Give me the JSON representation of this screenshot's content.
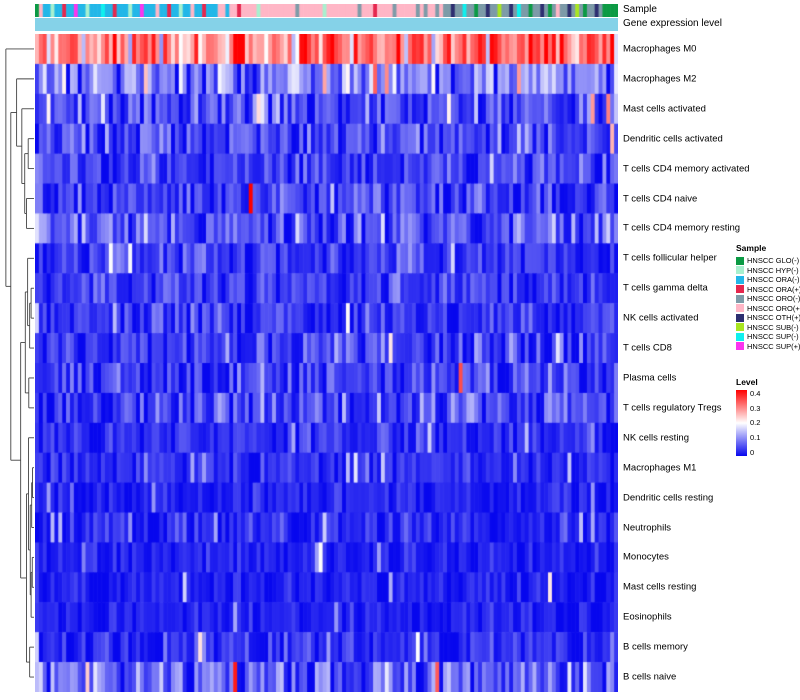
{
  "annotations": {
    "sample_label": "Sample",
    "expression_label": "Gene expression level",
    "expression_color": "#85D2E8",
    "column_samples": [
      0,
      5,
      2,
      2,
      1,
      2,
      2,
      3,
      2,
      2,
      9,
      2,
      2,
      1,
      2,
      2,
      2,
      8,
      2,
      2,
      3,
      2,
      2,
      2,
      1,
      2,
      2,
      9,
      2,
      2,
      2,
      5,
      2,
      2,
      3,
      2,
      2,
      1,
      2,
      2,
      5,
      2,
      2,
      3,
      2,
      2,
      2,
      5,
      5,
      2,
      5,
      5,
      3,
      5,
      5,
      5,
      5,
      1,
      5,
      5,
      5,
      5,
      5,
      5,
      5,
      5,
      5,
      4,
      5,
      5,
      5,
      5,
      5,
      5,
      1,
      5,
      5,
      5,
      5,
      5,
      5,
      5,
      5,
      4,
      5,
      5,
      5,
      3,
      5,
      5,
      5,
      5,
      4,
      5,
      5,
      5,
      5,
      5,
      4,
      5,
      4,
      5,
      5,
      4,
      5,
      4,
      4,
      6,
      4,
      4,
      8,
      4,
      4,
      0,
      4,
      4,
      6,
      4,
      4,
      7,
      4,
      4,
      6,
      4,
      8,
      4,
      4,
      0,
      4,
      4,
      6,
      4,
      0,
      4,
      5,
      4,
      4,
      6,
      4,
      7,
      4,
      0,
      4,
      4,
      6,
      4,
      0,
      0,
      0,
      0
    ]
  },
  "legend": {
    "sample_title": "Sample",
    "sample_items": [
      {
        "label": "HNSCC GLO(-)",
        "color": "#0B9A44"
      },
      {
        "label": "HNSCC HYP(-)",
        "color": "#A8F0CF"
      },
      {
        "label": "HNSCC ORA(-)",
        "color": "#23B7E8"
      },
      {
        "label": "HNSCC ORA(+)",
        "color": "#E5274E"
      },
      {
        "label": "HNSCC ORO(-)",
        "color": "#7D9BA8"
      },
      {
        "label": "HNSCC ORO(+)",
        "color": "#FFB6C6"
      },
      {
        "label": "HNSCC OTH(+)",
        "color": "#2D2E70"
      },
      {
        "label": "HNSCC SUB(-)",
        "color": "#A9E521"
      },
      {
        "label": "HNSCC SUP(-)",
        "color": "#0FF0EE"
      },
      {
        "label": "HNSCC SUP(+)",
        "color": "#FB35EF"
      }
    ],
    "level_title": "Level",
    "level_ticks": [
      "0.4",
      "0.3",
      "0.2",
      "0.1",
      "0"
    ]
  },
  "chart_data": {
    "type": "heatmap",
    "title": "",
    "n_columns": 150,
    "value_domain": [
      0,
      0.4
    ],
    "colormap": {
      "min_color": "#0707EE",
      "mid_color": "#FFFFFF",
      "max_color": "#FF0000"
    },
    "column_annotation_label": "Sample",
    "rows": [
      {
        "label": "Macrophages M0",
        "mean": 0.3,
        "sd": 0.065,
        "spike_prob": 0.04,
        "spike_value": 0.12
      },
      {
        "label": "Macrophages M2",
        "mean": 0.1,
        "sd": 0.05,
        "spike_prob": 0.02,
        "spike_value": 0.27
      },
      {
        "label": "Mast cells activated",
        "mean": 0.055,
        "sd": 0.045,
        "spike_prob": 0.03,
        "spike_value": 0.2,
        "spikes": [
          {
            "col": 143,
            "value": 0.28
          },
          {
            "col": 147,
            "value": 0.3
          }
        ]
      },
      {
        "label": "Dendritic cells activated",
        "mean": 0.05,
        "sd": 0.04,
        "spike_prob": 0.03,
        "spike_value": 0.22,
        "spikes": [
          {
            "col": 148,
            "value": 0.26
          }
        ]
      },
      {
        "label": "T cells CD4 memory activated",
        "mean": 0.045,
        "sd": 0.035,
        "spike_prob": 0.02,
        "spike_value": 0.18
      },
      {
        "label": "T cells CD4 naive",
        "mean": 0.05,
        "sd": 0.04,
        "spike_prob": 0.02,
        "spike_value": 0.15,
        "spikes": [
          {
            "col": 55,
            "value": 0.4
          }
        ]
      },
      {
        "label": "T cells CD4 memory resting",
        "mean": 0.065,
        "sd": 0.05,
        "spike_prob": 0.02,
        "spike_value": 0.2
      },
      {
        "label": "T cells follicular helper",
        "mean": 0.04,
        "sd": 0.032,
        "spike_prob": 0.02,
        "spike_value": 0.15
      },
      {
        "label": "T cells gamma delta",
        "mean": 0.035,
        "sd": 0.03,
        "spike_prob": 0.02,
        "spike_value": 0.14
      },
      {
        "label": "NK cells activated",
        "mean": 0.035,
        "sd": 0.03,
        "spike_prob": 0.03,
        "spike_value": 0.15
      },
      {
        "label": "T cells CD8",
        "mean": 0.045,
        "sd": 0.038,
        "spike_prob": 0.02,
        "spike_value": 0.17,
        "spikes": [
          {
            "col": 91,
            "value": 0.22
          }
        ]
      },
      {
        "label": "Plasma cells",
        "mean": 0.045,
        "sd": 0.04,
        "spike_prob": 0.02,
        "spike_value": 0.16,
        "spikes": [
          {
            "col": 109,
            "value": 0.34
          }
        ]
      },
      {
        "label": "T cells regulatory  Tregs",
        "mean": 0.05,
        "sd": 0.042,
        "spike_prob": 0.05,
        "spike_value": 0.15
      },
      {
        "label": "NK cells resting",
        "mean": 0.03,
        "sd": 0.025,
        "spike_prob": 0.03,
        "spike_value": 0.13
      },
      {
        "label": "Macrophages M1",
        "mean": 0.028,
        "sd": 0.022,
        "spike_prob": 0.04,
        "spike_value": 0.12
      },
      {
        "label": "Dendritic cells resting",
        "mean": 0.02,
        "sd": 0.017,
        "spike_prob": 0.02,
        "spike_value": 0.11
      },
      {
        "label": "Neutrophils",
        "mean": 0.024,
        "sd": 0.022,
        "spike_prob": 0.03,
        "spike_value": 0.14
      },
      {
        "label": "Monocytes",
        "mean": 0.02,
        "sd": 0.017,
        "spike_prob": 0.02,
        "spike_value": 0.11
      },
      {
        "label": "Mast cells resting",
        "mean": 0.02,
        "sd": 0.018,
        "spike_prob": 0.02,
        "spike_value": 0.12,
        "spikes": [
          {
            "col": 132,
            "value": 0.22
          }
        ]
      },
      {
        "label": "Eosinophils",
        "mean": 0.02,
        "sd": 0.018,
        "spike_prob": 0.02,
        "spike_value": 0.13
      },
      {
        "label": "B cells memory",
        "mean": 0.03,
        "sd": 0.028,
        "spike_prob": 0.02,
        "spike_value": 0.16,
        "spikes": [
          {
            "col": 98,
            "value": 0.2
          }
        ]
      },
      {
        "label": "B cells naive",
        "mean": 0.06,
        "sd": 0.05,
        "spike_prob": 0.03,
        "spike_value": 0.18,
        "spikes": [
          {
            "col": 51,
            "value": 0.38
          },
          {
            "col": 103,
            "value": 0.33
          }
        ]
      }
    ]
  },
  "dendrogram": {
    "tree": {
      "h": 0.97,
      "c": [
        0,
        {
          "h": 0.8,
          "c": [
            {
              "h": 0.6,
              "c": [
                1,
                {
                  "h": 0.42,
                  "c": [
                    2,
                    {
                      "h": 0.32,
                      "c": [
                        {
                          "h": 0.2,
                          "c": [
                            3,
                            4
                          ]
                        },
                        {
                          "h": 0.26,
                          "c": [
                            5,
                            6
                          ]
                        }
                      ]
                    }
                  ]
                }
              ]
            },
            {
              "h": 0.46,
              "c": [
                {
                  "h": 0.3,
                  "c": [
                    {
                      "h": 0.22,
                      "c": [
                        7,
                        {
                          "h": 0.15,
                          "c": [
                            {
                              "h": 0.1,
                              "c": [
                                8,
                                9
                              ]
                            },
                            10
                          ]
                        }
                      ]
                    },
                    {
                      "h": 0.18,
                      "c": [
                        11,
                        12
                      ]
                    }
                  ]
                },
                {
                  "h": 0.26,
                  "c": [
                    {
                      "h": 0.19,
                      "c": [
                        13,
                        {
                          "h": 0.13,
                          "c": [
                            {
                              "h": 0.08,
                              "c": [
                                {
                                  "h": 0.05,
                                  "c": [
                                    14,
                                    15
                                  ]
                                },
                                16
                              ]
                            },
                            {
                              "h": 0.1,
                              "c": [
                                {
                                  "h": 0.06,
                                  "c": [
                                    17,
                                    18
                                  ]
                                },
                                19
                              ]
                            }
                          ]
                        }
                      ]
                    },
                    {
                      "h": 0.15,
                      "c": [
                        20,
                        21
                      ]
                    }
                  ]
                }
              ]
            }
          ]
        }
      ]
    }
  }
}
